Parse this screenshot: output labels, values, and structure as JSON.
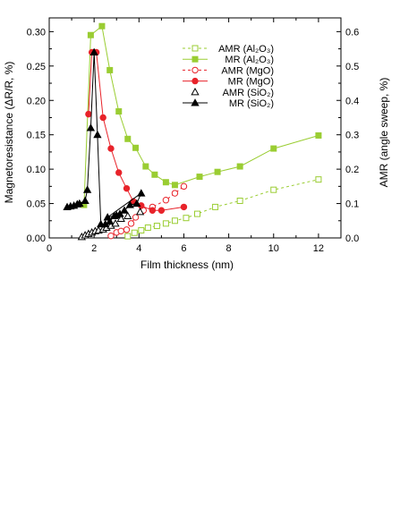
{
  "chart_data": {
    "type": "line",
    "xlabel": "Film thickness (nm)",
    "ylabel": "Magnetoresistance (ΔR/R, %)",
    "y2label": "AMR (angle sweep, %)",
    "xlim": [
      0,
      13
    ],
    "ylim": [
      0,
      0.32
    ],
    "y2lim": [
      0,
      0.64
    ],
    "x_ticks": [
      0,
      2,
      4,
      6,
      8,
      10,
      12
    ],
    "y_ticks": [
      0.0,
      0.05,
      0.1,
      0.15,
      0.2,
      0.25,
      0.3
    ],
    "y2_ticks": [
      0.0,
      0.1,
      0.2,
      0.3,
      0.4,
      0.5,
      0.6
    ],
    "x_tick_labels": [
      "0",
      "2",
      "4",
      "6",
      "8",
      "10",
      "12"
    ],
    "y_tick_labels": [
      "0.00",
      "0.05",
      "0.10",
      "0.15",
      "0.20",
      "0.25",
      "0.30"
    ],
    "y2_tick_labels": [
      "0.0",
      "0.1",
      "0.2",
      "0.3",
      "0.4",
      "0.5",
      "0.6"
    ],
    "grid": false,
    "legend_position": "top-right",
    "series": [
      {
        "name": "AMR (Al2O3)",
        "axis": "right",
        "color": "#9ACD32",
        "marker": "open-square",
        "line": "dashed",
        "points": [
          [
            3.5,
            0.005
          ],
          [
            3.8,
            0.015
          ],
          [
            4.1,
            0.022
          ],
          [
            4.4,
            0.03
          ],
          [
            4.8,
            0.035
          ],
          [
            5.2,
            0.042
          ],
          [
            5.6,
            0.05
          ],
          [
            6.1,
            0.058
          ],
          [
            6.6,
            0.07
          ],
          [
            7.4,
            0.09
          ],
          [
            8.5,
            0.108
          ],
          [
            10,
            0.14
          ],
          [
            12,
            0.17
          ]
        ]
      },
      {
        "name": "MR (Al2O3)",
        "axis": "left",
        "color": "#9ACD32",
        "marker": "filled-square",
        "line": "solid",
        "points": [
          [
            1.55,
            0.048
          ],
          [
            1.85,
            0.295
          ],
          [
            2.35,
            0.308
          ],
          [
            2.7,
            0.244
          ],
          [
            3.1,
            0.184
          ],
          [
            3.5,
            0.144
          ],
          [
            3.85,
            0.131
          ],
          [
            4.3,
            0.104
          ],
          [
            4.7,
            0.092
          ],
          [
            5.2,
            0.081
          ],
          [
            5.6,
            0.077
          ],
          [
            6.7,
            0.089
          ],
          [
            7.5,
            0.096
          ],
          [
            8.5,
            0.104
          ],
          [
            10,
            0.13
          ],
          [
            12,
            0.149
          ]
        ]
      },
      {
        "name": "AMR (MgO)",
        "axis": "right",
        "color": "#E8232A",
        "marker": "open-circle",
        "line": "dashed",
        "points": [
          [
            2.75,
            0.006
          ],
          [
            3.0,
            0.016
          ],
          [
            3.2,
            0.02
          ],
          [
            3.45,
            0.024
          ],
          [
            3.65,
            0.042
          ],
          [
            3.85,
            0.06
          ],
          [
            4.2,
            0.08
          ],
          [
            4.6,
            0.09
          ],
          [
            5.2,
            0.11
          ],
          [
            5.6,
            0.13
          ],
          [
            6.0,
            0.15
          ]
        ]
      },
      {
        "name": "MR (MgO)",
        "axis": "left",
        "color": "#E8232A",
        "marker": "filled-circle",
        "line": "solid",
        "points": [
          [
            1.75,
            0.18
          ],
          [
            1.9,
            0.27
          ],
          [
            2.1,
            0.27
          ],
          [
            2.4,
            0.175
          ],
          [
            2.75,
            0.13
          ],
          [
            3.1,
            0.095
          ],
          [
            3.45,
            0.072
          ],
          [
            3.75,
            0.053
          ],
          [
            4.1,
            0.047
          ],
          [
            4.6,
            0.04
          ],
          [
            5.0,
            0.04
          ],
          [
            6.0,
            0.045
          ]
        ]
      },
      {
        "name": "AMR (SiO2)",
        "axis": "right",
        "color": "#000000",
        "marker": "open-triangle",
        "line": "none",
        "points": [
          [
            1.45,
            0.003
          ],
          [
            1.6,
            0.008
          ],
          [
            1.75,
            0.012
          ],
          [
            1.9,
            0.016
          ],
          [
            2.05,
            0.02
          ],
          [
            2.2,
            0.022
          ],
          [
            2.4,
            0.025
          ],
          [
            2.55,
            0.03
          ],
          [
            2.75,
            0.036
          ],
          [
            2.95,
            0.042
          ],
          [
            3.2,
            0.056
          ],
          [
            3.5,
            0.064
          ],
          [
            4.05,
            0.076
          ]
        ]
      },
      {
        "name": "MR (SiO2)",
        "axis": "left",
        "color": "#000000",
        "marker": "filled-triangle",
        "line": "solid",
        "points": [
          [
            0.8,
            0.045
          ],
          [
            0.95,
            0.046
          ],
          [
            1.1,
            0.047
          ],
          [
            1.25,
            0.049
          ],
          [
            1.35,
            0.05
          ],
          [
            1.6,
            0.054
          ],
          [
            1.7,
            0.07
          ],
          [
            1.85,
            0.16
          ],
          [
            2.0,
            0.27
          ],
          [
            2.15,
            0.15
          ],
          [
            2.3,
            0.02
          ],
          [
            2.5,
            0.02
          ],
          [
            2.7,
            0.024
          ],
          [
            2.9,
            0.032
          ],
          [
            3.15,
            0.035
          ],
          [
            3.35,
            0.04
          ],
          [
            3.6,
            0.048
          ],
          [
            3.9,
            0.05
          ],
          [
            4.1,
            0.065
          ],
          [
            2.6,
            0.03
          ],
          [
            3.0,
            0.033
          ]
        ]
      }
    ],
    "legend": [
      {
        "label": "AMR (Al₂O₃)",
        "series": 0
      },
      {
        "label": "MR (Al₂O₃)",
        "series": 1
      },
      {
        "label": "AMR (MgO)",
        "series": 2
      },
      {
        "label": "MR (MgO)",
        "series": 3
      },
      {
        "label": "AMR (SiO₂)",
        "series": 4
      },
      {
        "label": "MR (SiO₂)",
        "series": 5
      }
    ]
  }
}
